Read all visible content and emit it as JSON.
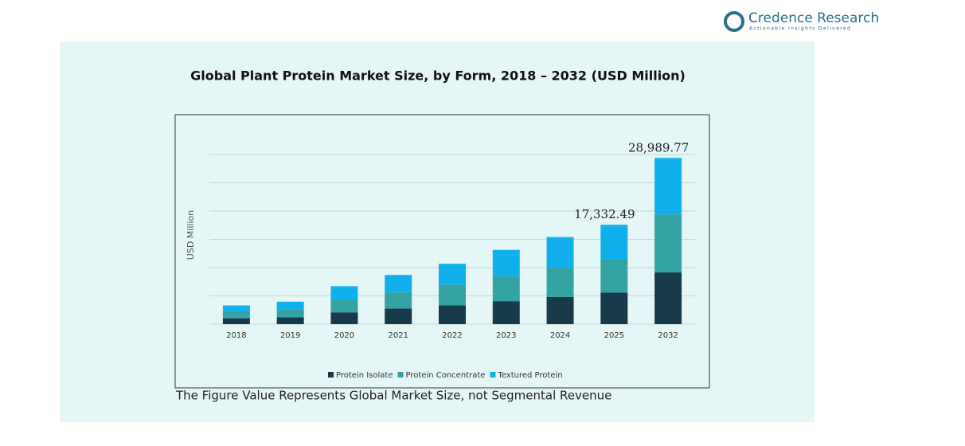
{
  "header": {
    "brand": "Credence Research",
    "tagline": "Actionable Insights Delivered"
  },
  "chart_data": {
    "type": "stacked-bar",
    "title": "Global Plant Protein Market Size, by Form, 2018 – 2032 (USD Million)",
    "y_label": "USD Million",
    "note": "The Figure Value Represents Global Market Size, not Segmental Revenue",
    "categories": [
      "2018",
      "2019",
      "2020",
      "2021",
      "2022",
      "2023",
      "2024",
      "2025",
      "2032"
    ],
    "series": [
      {
        "name": "Protein Isolate",
        "color": "#173b4b",
        "values": [
          1025,
          1211,
          2050,
          2702,
          3261,
          4007,
          4752,
          5498,
          9016
        ]
      },
      {
        "name": "Protein Concentrate",
        "color": "#33a3a3",
        "values": [
          1211,
          1398,
          2236,
          2889,
          3634,
          4379,
          5125,
          5871,
          10126
        ]
      },
      {
        "name": "Textured Protein",
        "color": "#0fb0ec",
        "values": [
          1025,
          1305,
          2330,
          2982,
          3634,
          4566,
          5311,
          5963.49,
          9847.77
        ]
      }
    ],
    "totals": [
      null,
      null,
      null,
      null,
      null,
      null,
      null,
      17332.49,
      28989.77
    ],
    "total_labels": [
      null,
      null,
      null,
      null,
      null,
      null,
      null,
      "17,332.49",
      "28,989.77"
    ],
    "ylim": [
      0,
      30000
    ],
    "grid": true
  }
}
